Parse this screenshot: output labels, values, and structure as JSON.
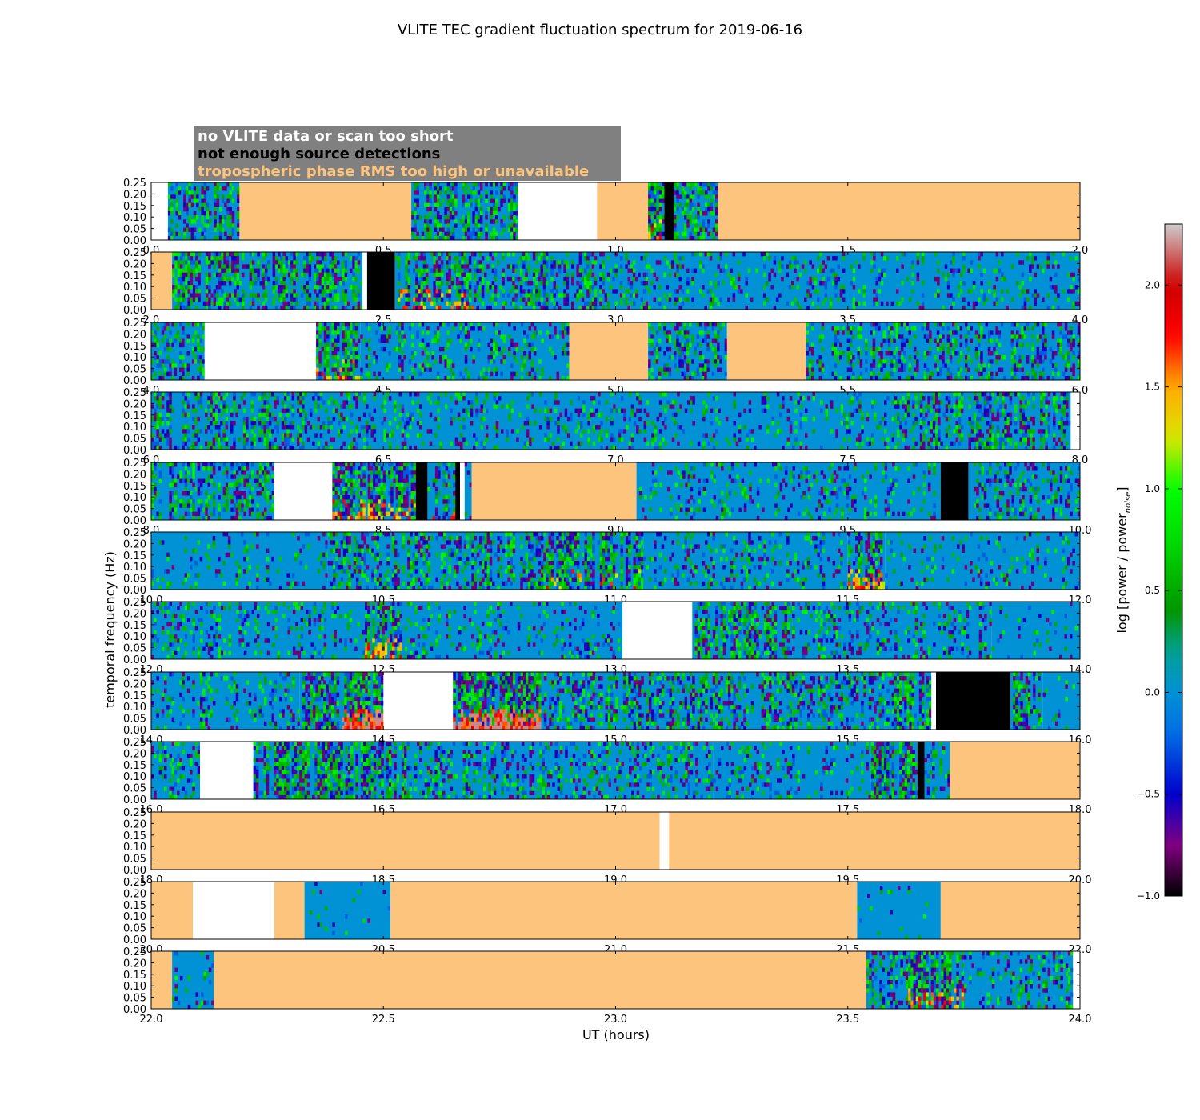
{
  "chart_data": {
    "type": "heatmap",
    "title": "VLITE TEC gradient fluctuation spectrum for 2019-06-16",
    "xlabel": "UT (hours)",
    "ylabel": "temporal frequency (Hz)",
    "colorbar": {
      "label": "log [power / power",
      "label_sub": "noise",
      "label_end": "]",
      "range": [
        -1.0,
        2.3
      ],
      "ticks": [
        "−1.0",
        "−0.5",
        "0.0",
        "0.5",
        "1.0",
        "1.5",
        "2.0"
      ],
      "tick_values": [
        -1.0,
        -0.5,
        0.0,
        0.5,
        1.0,
        1.5,
        2.0
      ]
    },
    "legend": {
      "placement": "top-left",
      "entries": [
        {
          "label": "no VLITE data or scan too short",
          "color": "#ffffff"
        },
        {
          "label": "not enough source detections",
          "color": "#000000"
        },
        {
          "label": "tropospheric phase RMS too high or unavailable",
          "color": "#fdc47e"
        }
      ],
      "background": "#808080"
    },
    "y_ticks": [
      "0.00",
      "0.05",
      "0.10",
      "0.15",
      "0.20",
      "0.25"
    ],
    "y_range": [
      0.0,
      0.25
    ],
    "colors": {
      "nodata": "#ffffff",
      "nodetect": "#000000",
      "trop": "#fdc47e",
      "base": "#0092d4"
    },
    "panels": [
      {
        "range": [
          0.0,
          2.0
        ],
        "ticks": [
          "0.0",
          "0.5",
          "1.0",
          "1.5",
          "2.0"
        ],
        "segments": [
          {
            "s": 0.0,
            "e": 0.036,
            "t": "nodata"
          },
          {
            "s": 0.036,
            "e": 0.19,
            "t": "data",
            "a": 0.6
          },
          {
            "s": 0.19,
            "e": 0.56,
            "t": "trop"
          },
          {
            "s": 0.56,
            "e": 0.79,
            "t": "data",
            "a": 0.7
          },
          {
            "s": 0.79,
            "e": 0.96,
            "t": "nodata"
          },
          {
            "s": 0.96,
            "e": 1.07,
            "t": "trop"
          },
          {
            "s": 1.07,
            "e": 1.105,
            "t": "data",
            "a": 0.8,
            "h": 0.3
          },
          {
            "s": 1.105,
            "e": 1.125,
            "t": "nodetect"
          },
          {
            "s": 1.125,
            "e": 1.22,
            "t": "data",
            "a": 0.6
          },
          {
            "s": 1.22,
            "e": 2.0,
            "t": "trop"
          }
        ]
      },
      {
        "range": [
          2.0,
          4.0
        ],
        "ticks": [
          "2.0",
          "2.5",
          "3.0",
          "3.5",
          "4.0"
        ],
        "segments": [
          {
            "s": 2.0,
            "e": 2.045,
            "t": "trop"
          },
          {
            "s": 2.045,
            "e": 2.455,
            "t": "data",
            "a": 0.7
          },
          {
            "s": 2.455,
            "e": 2.465,
            "t": "nodata"
          },
          {
            "s": 2.465,
            "e": 2.525,
            "t": "nodetect"
          },
          {
            "s": 2.525,
            "e": 2.7,
            "t": "data",
            "a": 0.8,
            "h": 0.35
          },
          {
            "s": 2.7,
            "e": 3.07,
            "t": "data",
            "a": 0.5
          },
          {
            "s": 3.07,
            "e": 4.0,
            "t": "data",
            "a": 0.25
          }
        ]
      },
      {
        "range": [
          4.0,
          6.0
        ],
        "ticks": [
          "4.0",
          "4.5",
          "5.0",
          "5.5",
          "6.0"
        ],
        "segments": [
          {
            "s": 4.0,
            "e": 4.115,
            "t": "data",
            "a": 0.4
          },
          {
            "s": 4.115,
            "e": 4.355,
            "t": "nodata"
          },
          {
            "s": 4.355,
            "e": 4.45,
            "t": "data",
            "a": 0.8,
            "h": 0.25
          },
          {
            "s": 4.45,
            "e": 4.9,
            "t": "data",
            "a": 0.35
          },
          {
            "s": 4.9,
            "e": 5.07,
            "t": "trop"
          },
          {
            "s": 5.07,
            "e": 5.24,
            "t": "data",
            "a": 0.45
          },
          {
            "s": 5.24,
            "e": 5.41,
            "t": "trop"
          },
          {
            "s": 5.41,
            "e": 6.0,
            "t": "data",
            "a": 0.45
          }
        ]
      },
      {
        "range": [
          6.0,
          8.0
        ],
        "ticks": [
          "6.0",
          "6.5",
          "7.0",
          "7.5",
          "8.0"
        ],
        "segments": [
          {
            "s": 6.0,
            "e": 6.33,
            "t": "data",
            "a": 0.6
          },
          {
            "s": 6.33,
            "e": 7.0,
            "t": "data",
            "a": 0.3
          },
          {
            "s": 7.0,
            "e": 7.6,
            "t": "data",
            "a": 0.25
          },
          {
            "s": 7.6,
            "e": 7.98,
            "t": "data",
            "a": 0.55
          },
          {
            "s": 7.98,
            "e": 8.0,
            "t": "nodata"
          }
        ]
      },
      {
        "range": [
          8.0,
          10.0
        ],
        "ticks": [
          "8.0",
          "8.5",
          "9.0",
          "9.5",
          "10.0"
        ],
        "segments": [
          {
            "s": 8.0,
            "e": 8.265,
            "t": "data",
            "a": 0.55
          },
          {
            "s": 8.265,
            "e": 8.39,
            "t": "nodata"
          },
          {
            "s": 8.39,
            "e": 8.57,
            "t": "data",
            "a": 0.85,
            "h": 0.45
          },
          {
            "s": 8.57,
            "e": 8.595,
            "t": "nodetect"
          },
          {
            "s": 8.595,
            "e": 8.655,
            "t": "data",
            "a": 0.6,
            "h": 0.2
          },
          {
            "s": 8.655,
            "e": 8.665,
            "t": "nodetect"
          },
          {
            "s": 8.665,
            "e": 8.675,
            "t": "nodata"
          },
          {
            "s": 8.675,
            "e": 8.69,
            "t": "data",
            "a": 0.2
          },
          {
            "s": 8.69,
            "e": 9.045,
            "t": "trop"
          },
          {
            "s": 9.045,
            "e": 9.7,
            "t": "data",
            "a": 0.25
          },
          {
            "s": 9.7,
            "e": 9.76,
            "t": "nodetect"
          },
          {
            "s": 9.76,
            "e": 10.0,
            "t": "data",
            "a": 0.35
          }
        ]
      },
      {
        "range": [
          10.0,
          12.0
        ],
        "ticks": [
          "10.0",
          "10.5",
          "11.0",
          "11.5",
          "12.0"
        ],
        "segments": [
          {
            "s": 10.0,
            "e": 10.38,
            "t": "data",
            "a": 0.15
          },
          {
            "s": 10.38,
            "e": 10.85,
            "t": "data",
            "a": 0.55
          },
          {
            "s": 10.85,
            "e": 11.06,
            "t": "data",
            "a": 0.8,
            "h": 0.2
          },
          {
            "s": 11.06,
            "e": 11.5,
            "t": "data",
            "a": 0.25
          },
          {
            "s": 11.5,
            "e": 11.58,
            "t": "data",
            "a": 0.8,
            "h": 0.6
          },
          {
            "s": 11.58,
            "e": 12.0,
            "t": "data",
            "a": 0.2
          }
        ]
      },
      {
        "range": [
          12.0,
          14.0
        ],
        "ticks": [
          "12.0",
          "12.5",
          "13.0",
          "13.5",
          "14.0"
        ],
        "segments": [
          {
            "s": 12.0,
            "e": 12.46,
            "t": "data",
            "a": 0.3
          },
          {
            "s": 12.46,
            "e": 12.54,
            "t": "data",
            "a": 0.8,
            "h": 0.55
          },
          {
            "s": 12.54,
            "e": 13.015,
            "t": "data",
            "a": 0.25
          },
          {
            "s": 13.015,
            "e": 13.165,
            "t": "nodata"
          },
          {
            "s": 13.165,
            "e": 13.38,
            "t": "data",
            "a": 0.75
          },
          {
            "s": 13.38,
            "e": 13.81,
            "t": "data",
            "a": 0.35
          },
          {
            "s": 13.81,
            "e": 14.0,
            "t": "data",
            "a": 0.1
          }
        ]
      },
      {
        "range": [
          14.0,
          16.0
        ],
        "ticks": [
          "14.0",
          "14.5",
          "15.0",
          "15.5",
          "16.0"
        ],
        "segments": [
          {
            "s": 14.0,
            "e": 14.32,
            "t": "data",
            "a": 0.25
          },
          {
            "s": 14.32,
            "e": 14.41,
            "t": "data",
            "a": 0.75
          },
          {
            "s": 14.41,
            "e": 14.5,
            "t": "data",
            "a": 0.95,
            "h": 1.0
          },
          {
            "s": 14.5,
            "e": 14.65,
            "t": "nodata"
          },
          {
            "s": 14.65,
            "e": 14.84,
            "t": "data",
            "a": 1.0,
            "h": 1.0
          },
          {
            "s": 14.84,
            "e": 15.6,
            "t": "data",
            "a": 0.5
          },
          {
            "s": 15.6,
            "e": 15.68,
            "t": "data",
            "a": 0.8
          },
          {
            "s": 15.68,
            "e": 15.69,
            "t": "nodata"
          },
          {
            "s": 15.69,
            "e": 15.85,
            "t": "nodetect"
          },
          {
            "s": 15.85,
            "e": 15.92,
            "t": "data",
            "a": 0.7
          },
          {
            "s": 15.92,
            "e": 16.0,
            "t": "data",
            "a": 0.1
          }
        ]
      },
      {
        "range": [
          16.0,
          18.0
        ],
        "ticks": [
          "16.0",
          "16.5",
          "17.0",
          "17.5",
          "18.0"
        ],
        "segments": [
          {
            "s": 16.0,
            "e": 16.105,
            "t": "data",
            "a": 0.3
          },
          {
            "s": 16.105,
            "e": 16.22,
            "t": "nodata"
          },
          {
            "s": 16.22,
            "e": 16.55,
            "t": "data",
            "a": 0.85
          },
          {
            "s": 16.55,
            "e": 17.21,
            "t": "data",
            "a": 0.4
          },
          {
            "s": 17.21,
            "e": 17.55,
            "t": "data",
            "a": 0.25
          },
          {
            "s": 17.55,
            "e": 17.65,
            "t": "data",
            "a": 0.85
          },
          {
            "s": 17.65,
            "e": 17.665,
            "t": "nodetect"
          },
          {
            "s": 17.665,
            "e": 17.72,
            "t": "data",
            "a": 0.45
          },
          {
            "s": 17.72,
            "e": 18.0,
            "t": "trop"
          }
        ]
      },
      {
        "range": [
          18.0,
          20.0
        ],
        "ticks": [
          "18.0",
          "18.5",
          "19.0",
          "19.5",
          "20.0"
        ],
        "segments": [
          {
            "s": 18.0,
            "e": 19.095,
            "t": "trop"
          },
          {
            "s": 19.095,
            "e": 19.115,
            "t": "nodata"
          },
          {
            "s": 19.115,
            "e": 20.0,
            "t": "trop"
          }
        ]
      },
      {
        "range": [
          20.0,
          22.0
        ],
        "ticks": [
          "20.0",
          "20.5",
          "21.0",
          "21.5",
          "22.0"
        ],
        "segments": [
          {
            "s": 20.0,
            "e": 20.09,
            "t": "trop"
          },
          {
            "s": 20.09,
            "e": 20.265,
            "t": "nodata"
          },
          {
            "s": 20.265,
            "e": 20.33,
            "t": "trop"
          },
          {
            "s": 20.33,
            "e": 20.515,
            "t": "data",
            "a": 0.05
          },
          {
            "s": 20.515,
            "e": 21.52,
            "t": "trop"
          },
          {
            "s": 21.52,
            "e": 21.7,
            "t": "data",
            "a": 0.03
          },
          {
            "s": 21.7,
            "e": 22.0,
            "t": "trop"
          }
        ]
      },
      {
        "range": [
          22.0,
          24.0
        ],
        "ticks": [
          "22.0",
          "22.5",
          "23.0",
          "23.5",
          "24.0"
        ],
        "segments": [
          {
            "s": 22.0,
            "e": 22.045,
            "t": "trop"
          },
          {
            "s": 22.045,
            "e": 22.135,
            "t": "data",
            "a": 0.15
          },
          {
            "s": 22.135,
            "e": 23.54,
            "t": "trop"
          },
          {
            "s": 23.54,
            "e": 23.63,
            "t": "data",
            "a": 0.6
          },
          {
            "s": 23.63,
            "e": 23.75,
            "t": "data",
            "a": 0.9,
            "h": 0.3
          },
          {
            "s": 23.75,
            "e": 23.985,
            "t": "data",
            "a": 0.3
          },
          {
            "s": 23.985,
            "e": 24.0,
            "t": "nodata"
          }
        ]
      }
    ]
  }
}
